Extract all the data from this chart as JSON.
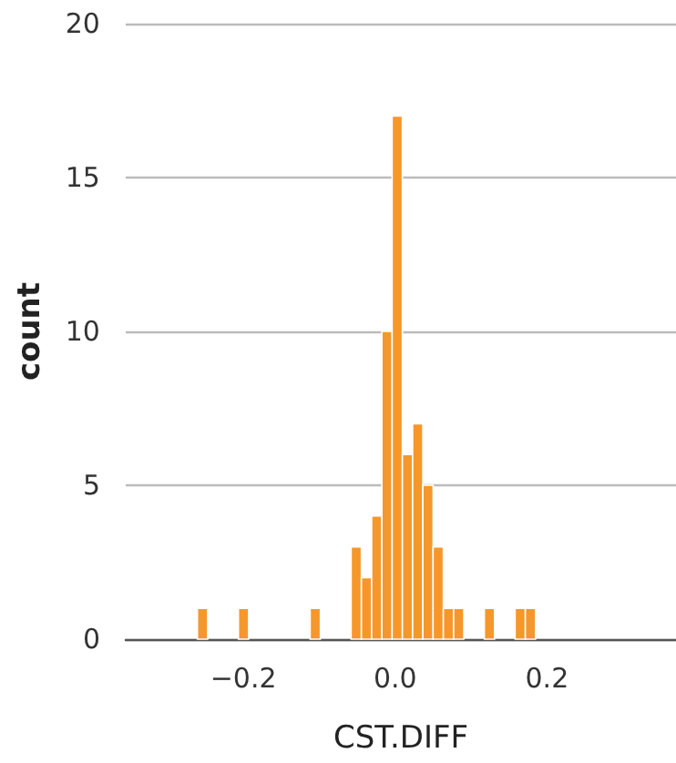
{
  "chart_data": {
    "type": "histogram",
    "xlabel": "CST.DIFF",
    "ylabel": "count",
    "color": "#f5972a",
    "bins": [
      -0.2605,
      -0.247,
      -0.2335,
      -0.22,
      -0.2065,
      -0.193,
      -0.1795,
      -0.166,
      -0.1525,
      -0.139,
      -0.1255,
      -0.112,
      -0.0985,
      -0.085,
      -0.0715,
      -0.058,
      -0.0445,
      -0.031,
      -0.0175,
      -0.004,
      0.0095,
      0.023,
      0.0365,
      0.05,
      0.0635,
      0.077,
      0.0905,
      0.104,
      0.1175,
      0.131,
      0.1445,
      0.158,
      0.1715,
      0.185
    ],
    "values": [
      1,
      0,
      0,
      0,
      1,
      0,
      0,
      0,
      0,
      0,
      0,
      1,
      0,
      0,
      0,
      3,
      2,
      4,
      10,
      17,
      6,
      7,
      5,
      3,
      1,
      1,
      0,
      0,
      1,
      0,
      0,
      1,
      1
    ],
    "xlim": [
      -0.355,
      0.37
    ],
    "xticks": [
      {
        "value": -0.2,
        "label": "−0.2"
      },
      {
        "value": 0,
        "label": "0.0"
      },
      {
        "value": 0.2,
        "label": "0.2"
      }
    ],
    "ylim": [
      0,
      20
    ],
    "yticks": [
      0,
      5,
      10,
      15,
      20
    ],
    "grid": "y"
  }
}
